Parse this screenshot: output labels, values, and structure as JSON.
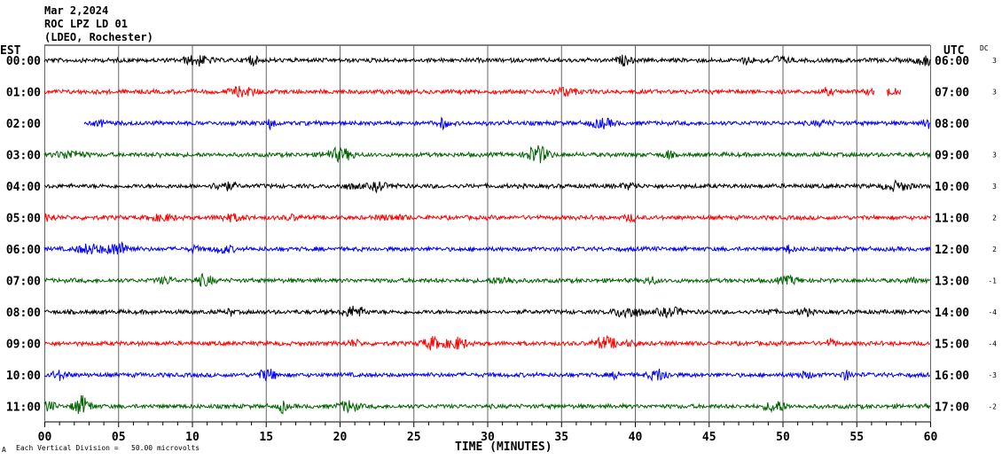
{
  "chart_data": {
    "type": "line",
    "title_lines": [
      "Mar 2,2024",
      "ROC LPZ LD 01",
      "(LDEO, Rochester)"
    ],
    "left_axis_title": "EST",
    "right_axis_title": "UTC",
    "dc_title": "DC",
    "xlabel": "TIME (MINUTES)",
    "xlim": [
      0,
      60
    ],
    "x_ticks": [
      "00",
      "05",
      "10",
      "15",
      "20",
      "25",
      "30",
      "35",
      "40",
      "45",
      "50",
      "55",
      "60"
    ],
    "footnote_mark": "A",
    "footnote": "Each Vertical Division =   50.00 microvolts",
    "grid": true,
    "rows": [
      {
        "est": "00:00",
        "utc": "06:00",
        "dc": "3",
        "color": "#000000",
        "start": 0,
        "end": 60,
        "gaps": []
      },
      {
        "est": "01:00",
        "utc": "07:00",
        "dc": "3",
        "color": "#ff0000",
        "start": 0,
        "end": 58,
        "gaps": [
          [
            56.2,
            57.0
          ]
        ]
      },
      {
        "est": "02:00",
        "utc": "08:00",
        "dc": "",
        "color": "#0000ff",
        "start": 2.7,
        "end": 60,
        "gaps": []
      },
      {
        "est": "03:00",
        "utc": "09:00",
        "dc": "3",
        "color": "#006400",
        "start": 0,
        "end": 60,
        "gaps": []
      },
      {
        "est": "04:00",
        "utc": "10:00",
        "dc": "3",
        "color": "#000000",
        "start": 0,
        "end": 60,
        "gaps": []
      },
      {
        "est": "05:00",
        "utc": "11:00",
        "dc": "2",
        "color": "#ff0000",
        "start": 0,
        "end": 60,
        "gaps": []
      },
      {
        "est": "06:00",
        "utc": "12:00",
        "dc": "2",
        "color": "#0000ff",
        "start": 0,
        "end": 60,
        "gaps": []
      },
      {
        "est": "07:00",
        "utc": "13:00",
        "dc": "-1",
        "color": "#006400",
        "start": 0,
        "end": 60,
        "gaps": []
      },
      {
        "est": "08:00",
        "utc": "14:00",
        "dc": "-4",
        "color": "#000000",
        "start": 0,
        "end": 60,
        "gaps": []
      },
      {
        "est": "09:00",
        "utc": "15:00",
        "dc": "-4",
        "color": "#ff0000",
        "start": 0,
        "end": 60,
        "gaps": []
      },
      {
        "est": "10:00",
        "utc": "16:00",
        "dc": "-3",
        "color": "#0000ff",
        "start": 0,
        "end": 60,
        "gaps": []
      },
      {
        "est": "11:00",
        "utc": "17:00",
        "dc": "-2",
        "color": "#006400",
        "start": 0,
        "end": 60,
        "gaps": []
      }
    ]
  }
}
